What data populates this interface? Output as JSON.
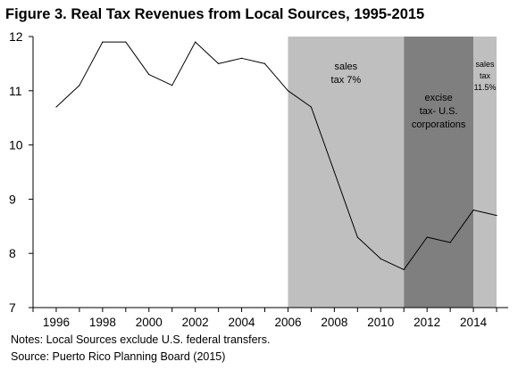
{
  "title": "Figure 3. Real Tax Revenues from Local Sources, 1995-2015",
  "notes": [
    "Notes: Local Sources exclude U.S. federal transfers.",
    "Source: Puerto Rico Planning Board (2015)"
  ],
  "chart_data": {
    "type": "line",
    "title": "Figure 3. Real Tax Revenues from Local Sources, 1995-2015",
    "xlabel": "",
    "ylabel": "",
    "xlim": [
      1995,
      2015.5
    ],
    "ylim": [
      7,
      12
    ],
    "x_ticks": [
      1996,
      1998,
      2000,
      2002,
      2004,
      2006,
      2008,
      2010,
      2012,
      2014
    ],
    "y_ticks": [
      7,
      8,
      9,
      10,
      11,
      12
    ],
    "grid": false,
    "legend": "none",
    "series": [
      {
        "x": [
          1996,
          1997,
          1998,
          1999,
          2000,
          2001,
          2002,
          2003,
          2004,
          2005,
          2006,
          2007,
          2008,
          2009,
          2010,
          2011,
          2012,
          2013,
          2014,
          2015
        ],
        "values": [
          10.7,
          11.1,
          11.9,
          11.9,
          11.3,
          11.1,
          11.9,
          11.5,
          11.6,
          11.5,
          11.0,
          10.7,
          9.5,
          8.3,
          7.9,
          7.7,
          8.3,
          8.2,
          8.8,
          8.7
        ],
        "color": "#000000"
      }
    ],
    "shaded_regions": [
      {
        "from": 2006,
        "to": 2011,
        "color": "#bfbfbf",
        "label_lines": [
          "sales",
          "tax 7%"
        ]
      },
      {
        "from": 2011,
        "to": 2014,
        "color": "#7f7f7f",
        "label_lines": [
          "excise",
          "tax- U.S.",
          "corporations"
        ]
      },
      {
        "from": 2014,
        "to": 2015,
        "color": "#bfbfbf",
        "label_lines": [
          "sales",
          "tax",
          "11.5%"
        ]
      }
    ]
  }
}
